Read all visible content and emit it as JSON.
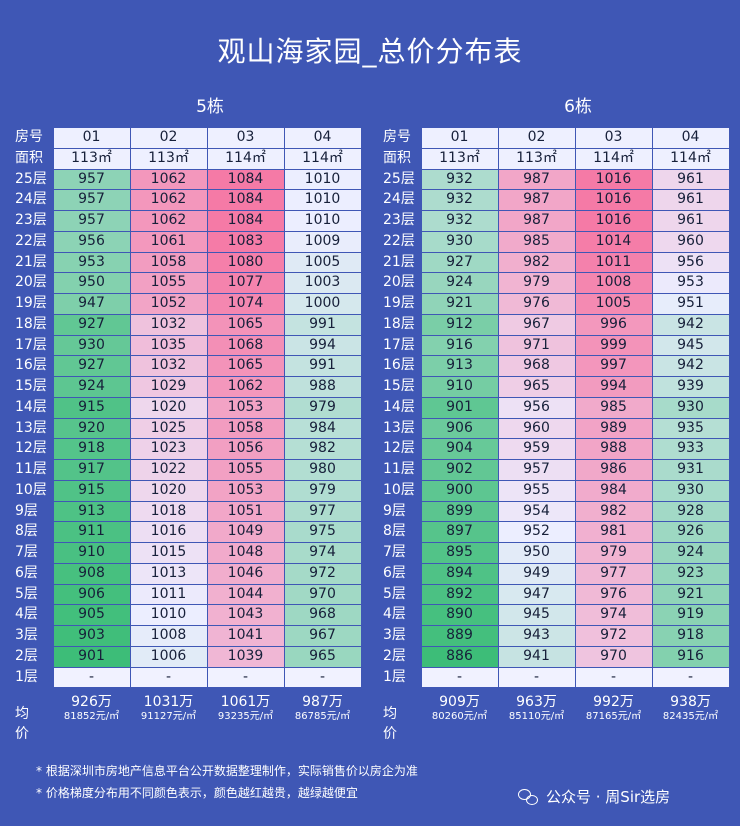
{
  "title": "观山海家园_总价分布表",
  "buildings": [
    {
      "name": "5栋",
      "rooms": [
        "01",
        "02",
        "03",
        "04"
      ],
      "areas": [
        "113㎡",
        "113㎡",
        "114㎡",
        "114㎡"
      ],
      "rows": [
        {
          "floor": "25层",
          "v": [
            "957",
            "1062",
            "1084",
            "1010"
          ]
        },
        {
          "floor": "24层",
          "v": [
            "957",
            "1062",
            "1084",
            "1010"
          ]
        },
        {
          "floor": "23层",
          "v": [
            "957",
            "1062",
            "1084",
            "1010"
          ]
        },
        {
          "floor": "22层",
          "v": [
            "956",
            "1061",
            "1083",
            "1009"
          ]
        },
        {
          "floor": "21层",
          "v": [
            "953",
            "1058",
            "1080",
            "1005"
          ]
        },
        {
          "floor": "20层",
          "v": [
            "950",
            "1055",
            "1077",
            "1003"
          ]
        },
        {
          "floor": "19层",
          "v": [
            "947",
            "1052",
            "1074",
            "1000"
          ]
        },
        {
          "floor": "18层",
          "v": [
            "927",
            "1032",
            "1065",
            "991"
          ]
        },
        {
          "floor": "17层",
          "v": [
            "930",
            "1035",
            "1068",
            "994"
          ]
        },
        {
          "floor": "16层",
          "v": [
            "927",
            "1032",
            "1065",
            "991"
          ]
        },
        {
          "floor": "15层",
          "v": [
            "924",
            "1029",
            "1062",
            "988"
          ]
        },
        {
          "floor": "14层",
          "v": [
            "915",
            "1020",
            "1053",
            "979"
          ]
        },
        {
          "floor": "13层",
          "v": [
            "920",
            "1025",
            "1058",
            "984"
          ]
        },
        {
          "floor": "12层",
          "v": [
            "918",
            "1023",
            "1056",
            "982"
          ]
        },
        {
          "floor": "11层",
          "v": [
            "917",
            "1022",
            "1055",
            "980"
          ]
        },
        {
          "floor": "10层",
          "v": [
            "915",
            "1020",
            "1053",
            "979"
          ]
        },
        {
          "floor": "9层",
          "v": [
            "913",
            "1018",
            "1051",
            "977"
          ]
        },
        {
          "floor": "8层",
          "v": [
            "911",
            "1016",
            "1049",
            "975"
          ]
        },
        {
          "floor": "7层",
          "v": [
            "910",
            "1015",
            "1048",
            "974"
          ]
        },
        {
          "floor": "6层",
          "v": [
            "908",
            "1013",
            "1046",
            "972"
          ]
        },
        {
          "floor": "5层",
          "v": [
            "906",
            "1011",
            "1044",
            "970"
          ]
        },
        {
          "floor": "4层",
          "v": [
            "905",
            "1010",
            "1043",
            "968"
          ]
        },
        {
          "floor": "3层",
          "v": [
            "903",
            "1008",
            "1041",
            "967"
          ]
        },
        {
          "floor": "2层",
          "v": [
            "901",
            "1006",
            "1039",
            "965"
          ]
        },
        {
          "floor": "1层",
          "v": [
            "-",
            "-",
            "-",
            "-"
          ]
        }
      ],
      "avg_price": [
        "926万",
        "1031万",
        "1061万",
        "987万"
      ],
      "avg_unit": [
        "81852元/㎡",
        "91127元/㎡",
        "93235元/㎡",
        "86785元/㎡"
      ]
    },
    {
      "name": "6栋",
      "rooms": [
        "01",
        "02",
        "03",
        "04"
      ],
      "areas": [
        "113㎡",
        "113㎡",
        "114㎡",
        "114㎡"
      ],
      "rows": [
        {
          "floor": "25层",
          "v": [
            "932",
            "987",
            "1016",
            "961"
          ]
        },
        {
          "floor": "24层",
          "v": [
            "932",
            "987",
            "1016",
            "961"
          ]
        },
        {
          "floor": "23层",
          "v": [
            "932",
            "987",
            "1016",
            "961"
          ]
        },
        {
          "floor": "22层",
          "v": [
            "930",
            "985",
            "1014",
            "960"
          ]
        },
        {
          "floor": "21层",
          "v": [
            "927",
            "982",
            "1011",
            "956"
          ]
        },
        {
          "floor": "20层",
          "v": [
            "924",
            "979",
            "1008",
            "953"
          ]
        },
        {
          "floor": "19层",
          "v": [
            "921",
            "976",
            "1005",
            "951"
          ]
        },
        {
          "floor": "18层",
          "v": [
            "912",
            "967",
            "996",
            "942"
          ]
        },
        {
          "floor": "17层",
          "v": [
            "916",
            "971",
            "999",
            "945"
          ]
        },
        {
          "floor": "16层",
          "v": [
            "913",
            "968",
            "997",
            "942"
          ]
        },
        {
          "floor": "15层",
          "v": [
            "910",
            "965",
            "994",
            "939"
          ]
        },
        {
          "floor": "14层",
          "v": [
            "901",
            "956",
            "985",
            "930"
          ]
        },
        {
          "floor": "13层",
          "v": [
            "906",
            "960",
            "989",
            "935"
          ]
        },
        {
          "floor": "12层",
          "v": [
            "904",
            "959",
            "988",
            "933"
          ]
        },
        {
          "floor": "11层",
          "v": [
            "902",
            "957",
            "986",
            "931"
          ]
        },
        {
          "floor": "10层",
          "v": [
            "900",
            "955",
            "984",
            "930"
          ]
        },
        {
          "floor": "9层",
          "v": [
            "899",
            "954",
            "982",
            "928"
          ]
        },
        {
          "floor": "8层",
          "v": [
            "897",
            "952",
            "981",
            "926"
          ]
        },
        {
          "floor": "7层",
          "v": [
            "895",
            "950",
            "979",
            "924"
          ]
        },
        {
          "floor": "6层",
          "v": [
            "894",
            "949",
            "977",
            "923"
          ]
        },
        {
          "floor": "5层",
          "v": [
            "892",
            "947",
            "976",
            "921"
          ]
        },
        {
          "floor": "4层",
          "v": [
            "890",
            "945",
            "974",
            "919"
          ]
        },
        {
          "floor": "3层",
          "v": [
            "889",
            "943",
            "972",
            "918"
          ]
        },
        {
          "floor": "2层",
          "v": [
            "886",
            "941",
            "970",
            "916"
          ]
        },
        {
          "floor": "1层",
          "v": [
            "-",
            "-",
            "-",
            "-"
          ]
        }
      ],
      "avg_price": [
        "909万",
        "963万",
        "992万",
        "938万"
      ],
      "avg_unit": [
        "80260元/㎡",
        "85110元/㎡",
        "87165元/㎡",
        "82435元/㎡"
      ]
    }
  ],
  "labels": {
    "room": "房号",
    "area": "面积",
    "avg": "均价"
  },
  "notes": [
    "* 根据深圳市房地产信息平台公开数据整理制作，实际销售价以房企为准",
    "* 价格梯度分布用不同颜色表示，颜色越红越贵，越绿越便宜"
  ],
  "brand": {
    "text": "公众号 · 周Sir选房",
    "icon": "wechat-icon"
  },
  "colors": {
    "background": "#3f57b5",
    "expensive": "#f57aa6",
    "cheap": "#3dbd78",
    "neutral": "#eef0ff"
  }
}
